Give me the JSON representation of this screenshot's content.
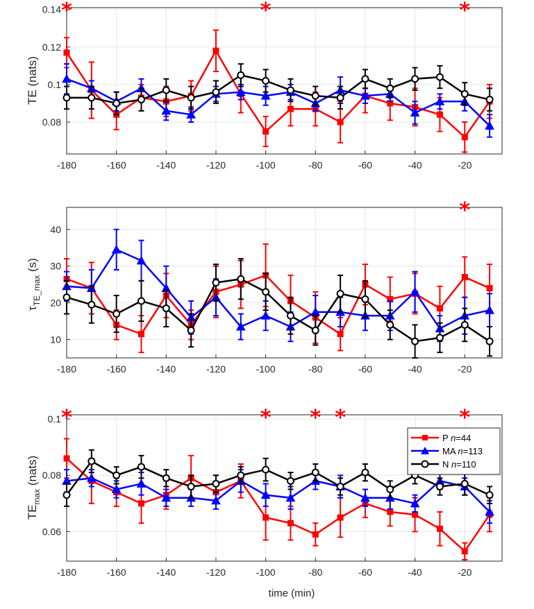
{
  "colors": {
    "P": "#ff0000",
    "MA": "#0000ff",
    "N": "#000000",
    "grid": "#e6e6e6"
  },
  "legend": {
    "entries": [
      {
        "key": "P",
        "label": "P",
        "n": "n=44"
      },
      {
        "key": "MA",
        "label": "MA",
        "n": "n=113"
      },
      {
        "key": "N",
        "label": "N",
        "n": "n=110"
      }
    ],
    "location": "top-right of bottom panel"
  },
  "xlabel": "time (min)",
  "chart_data": [
    {
      "type": "line",
      "title": "",
      "ylabel": "TE (nats)",
      "xlim": [
        -180,
        -5
      ],
      "ylim": [
        0.063,
        0.141
      ],
      "yticks": [
        0.08,
        0.1,
        0.12,
        0.14
      ],
      "ytick_labels": [
        "0.08",
        "0.1",
        "0.12",
        "0.14"
      ],
      "xticks": [
        -180,
        -160,
        -140,
        -120,
        -100,
        -80,
        -60,
        -40,
        -20
      ],
      "xtick_labels": [
        "-180",
        "-160",
        "-140",
        "-120",
        "-100",
        "-80",
        "-60",
        "-40",
        "-20"
      ],
      "x": [
        -180,
        -170,
        -160,
        -150,
        -140,
        -130,
        -120,
        -110,
        -100,
        -90,
        -80,
        -70,
        -60,
        -50,
        -40,
        -30,
        -20,
        -10
      ],
      "series": [
        {
          "name": "P",
          "marker": "square",
          "values": [
            0.117,
            0.097,
            0.084,
            0.093,
            0.091,
            0.094,
            0.118,
            0.095,
            0.075,
            0.087,
            0.087,
            0.08,
            0.094,
            0.09,
            0.088,
            0.084,
            0.072,
            0.091
          ],
          "errors": [
            0.008,
            0.015,
            0.008,
            0.007,
            0.008,
            0.008,
            0.011,
            0.01,
            0.008,
            0.009,
            0.009,
            0.011,
            0.009,
            0.009,
            0.01,
            0.009,
            0.008,
            0.009
          ]
        },
        {
          "name": "MA",
          "marker": "triangle",
          "values": [
            0.103,
            0.098,
            0.091,
            0.098,
            0.086,
            0.084,
            0.095,
            0.096,
            0.094,
            0.096,
            0.09,
            0.097,
            0.094,
            0.095,
            0.085,
            0.091,
            0.091,
            0.078
          ],
          "errors": [
            0.008,
            0.004,
            0.005,
            0.005,
            0.005,
            0.004,
            0.004,
            0.004,
            0.005,
            0.004,
            0.004,
            0.007,
            0.004,
            0.004,
            0.006,
            0.004,
            0.005,
            0.006
          ]
        },
        {
          "name": "N",
          "marker": "circle",
          "values": [
            0.093,
            0.093,
            0.09,
            0.092,
            0.097,
            0.093,
            0.096,
            0.105,
            0.102,
            0.097,
            0.094,
            0.093,
            0.103,
            0.098,
            0.103,
            0.104,
            0.095,
            0.092
          ],
          "errors": [
            0.006,
            0.006,
            0.006,
            0.006,
            0.006,
            0.006,
            0.006,
            0.006,
            0.006,
            0.006,
            0.005,
            0.006,
            0.005,
            0.005,
            0.006,
            0.006,
            0.006,
            0.006
          ]
        }
      ],
      "significance_markers": [
        -180,
        -100,
        -20
      ]
    },
    {
      "type": "line",
      "title": "",
      "ylabel": "τ",
      "ylabel_subscript": "TE_max",
      "ylabel_units": "(s)",
      "xlim": [
        -180,
        -5
      ],
      "ylim": [
        5,
        46
      ],
      "yticks": [
        10,
        20,
        30,
        40
      ],
      "ytick_labels": [
        "10",
        "20",
        "30",
        "40"
      ],
      "xticks": [
        -180,
        -160,
        -140,
        -120,
        -100,
        -80,
        -60,
        -40,
        -20
      ],
      "xtick_labels": [
        "-180",
        "-160",
        "-140",
        "-120",
        "-100",
        "-80",
        "-60",
        "-40",
        "-20"
      ],
      "x": [
        -180,
        -170,
        -160,
        -150,
        -140,
        -130,
        -120,
        -110,
        -100,
        -90,
        -80,
        -70,
        -60,
        -50,
        -40,
        -30,
        -20,
        -10
      ],
      "series": [
        {
          "name": "P",
          "marker": "square",
          "values": [
            26.5,
            24.0,
            14.0,
            11.5,
            22.0,
            14.0,
            23.0,
            25.0,
            27.5,
            20.5,
            16.0,
            11.5,
            25.0,
            21.0,
            22.5,
            18.5,
            27.0,
            24.0
          ],
          "errors": [
            5.5,
            7.0,
            4.0,
            5.0,
            6.0,
            4.0,
            7.0,
            6.5,
            8.5,
            7.0,
            7.0,
            4.5,
            5.5,
            6.0,
            5.5,
            6.0,
            5.5,
            6.5
          ]
        },
        {
          "name": "MA",
          "marker": "triangle",
          "values": [
            24.5,
            24.0,
            34.5,
            31.5,
            24.0,
            16.0,
            21.5,
            13.5,
            16.5,
            13.5,
            17.5,
            17.5,
            16.5,
            16.5,
            23.0,
            13.0,
            16.5,
            18.0
          ],
          "errors": [
            4.0,
            5.0,
            5.5,
            5.5,
            6.0,
            4.5,
            5.0,
            3.5,
            4.0,
            4.0,
            4.5,
            4.0,
            4.0,
            4.0,
            5.5,
            3.5,
            5.0,
            4.5
          ]
        },
        {
          "name": "N",
          "marker": "circle",
          "values": [
            21.5,
            19.5,
            17.0,
            20.5,
            18.5,
            12.5,
            25.5,
            26.5,
            23.0,
            16.5,
            12.5,
            22.5,
            21.0,
            14.0,
            9.5,
            10.5,
            14.0,
            9.5
          ],
          "errors": [
            4.5,
            5.0,
            5.0,
            5.5,
            5.0,
            4.5,
            5.0,
            5.5,
            5.0,
            5.0,
            4.0,
            5.0,
            5.0,
            4.0,
            4.5,
            4.0,
            4.5,
            4.0
          ]
        }
      ],
      "significance_markers": [
        -20
      ]
    },
    {
      "type": "line",
      "title": "",
      "ylabel": "TE",
      "ylabel_subscript": "max",
      "ylabel_units": "(nats)",
      "xlabel": "time (min)",
      "xlim": [
        -180,
        -5
      ],
      "ylim": [
        0.0495,
        0.1015
      ],
      "yticks": [
        0.06,
        0.08,
        0.1
      ],
      "ytick_labels": [
        "0.06",
        "0.08",
        "0.1"
      ],
      "xticks": [
        -180,
        -160,
        -140,
        -120,
        -100,
        -80,
        -60,
        -40,
        -20
      ],
      "xtick_labels": [
        "-180",
        "-160",
        "-140",
        "-120",
        "-100",
        "-80",
        "-60",
        "-40",
        "-20"
      ],
      "x": [
        -180,
        -170,
        -160,
        -150,
        -140,
        -130,
        -120,
        -110,
        -100,
        -90,
        -80,
        -70,
        -60,
        -50,
        -40,
        -30,
        -20,
        -10
      ],
      "series": [
        {
          "name": "P",
          "marker": "square",
          "values": [
            0.086,
            0.078,
            0.074,
            0.07,
            0.073,
            0.079,
            0.074,
            0.078,
            0.065,
            0.063,
            0.059,
            0.065,
            0.07,
            0.067,
            0.066,
            0.061,
            0.053,
            0.066
          ],
          "errors": [
            0.007,
            0.008,
            0.005,
            0.007,
            0.005,
            0.008,
            0.006,
            0.006,
            0.008,
            0.006,
            0.004,
            0.007,
            0.005,
            0.005,
            0.006,
            0.006,
            0.003,
            0.006
          ]
        },
        {
          "name": "MA",
          "marker": "triangle",
          "values": [
            0.078,
            0.079,
            0.075,
            0.077,
            0.072,
            0.072,
            0.071,
            0.078,
            0.073,
            0.072,
            0.078,
            0.076,
            0.072,
            0.072,
            0.07,
            0.078,
            0.076,
            0.067
          ],
          "errors": [
            0.004,
            0.003,
            0.003,
            0.004,
            0.003,
            0.003,
            0.003,
            0.004,
            0.004,
            0.004,
            0.003,
            0.004,
            0.003,
            0.004,
            0.003,
            0.003,
            0.003,
            0.004
          ]
        },
        {
          "name": "N",
          "marker": "circle",
          "values": [
            0.073,
            0.085,
            0.08,
            0.083,
            0.079,
            0.076,
            0.077,
            0.08,
            0.082,
            0.078,
            0.081,
            0.076,
            0.081,
            0.075,
            0.08,
            0.076,
            0.077,
            0.073
          ],
          "errors": [
            0.004,
            0.004,
            0.003,
            0.004,
            0.003,
            0.004,
            0.003,
            0.003,
            0.004,
            0.003,
            0.003,
            0.003,
            0.003,
            0.003,
            0.003,
            0.003,
            0.004,
            0.003
          ]
        }
      ],
      "significance_markers": [
        -180,
        -100,
        -80,
        -70,
        -20
      ]
    }
  ]
}
